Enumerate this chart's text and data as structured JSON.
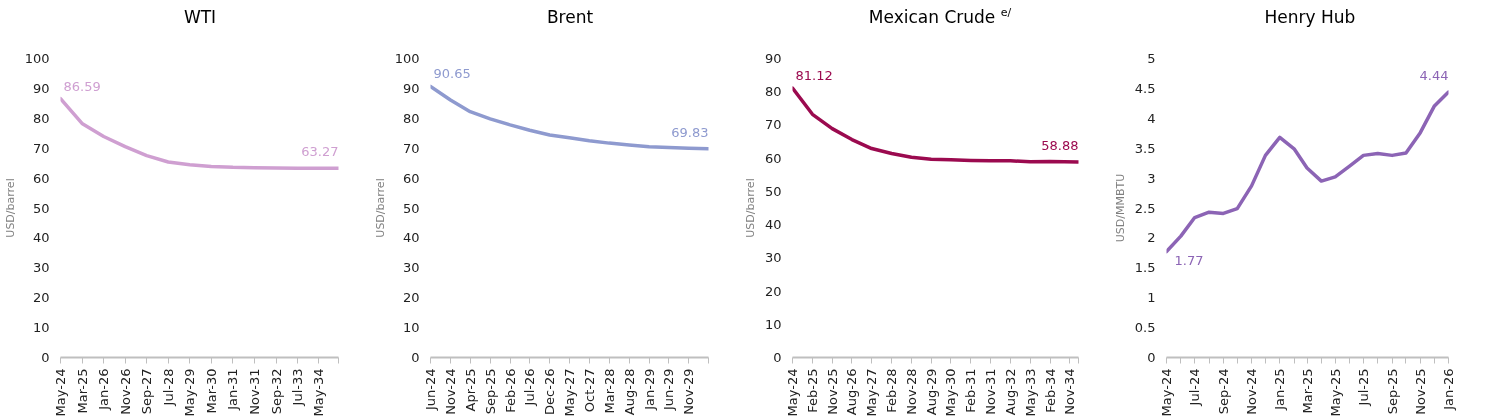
{
  "chart_data": [
    {
      "type": "line",
      "title": "WTI",
      "ylabel": "USD/barrel",
      "color": "#cf9fd1",
      "ylim": [
        0,
        100
      ],
      "yticks": [
        0,
        10,
        20,
        30,
        40,
        50,
        60,
        70,
        80,
        90,
        100
      ],
      "xlim": [
        "2024-05",
        "2035-02"
      ],
      "xticks": [
        {
          "value": "2024-05",
          "label": "May-24"
        },
        {
          "value": "2025-03",
          "label": "Mar-25"
        },
        {
          "value": "2026-01",
          "label": "Jan-26"
        },
        {
          "value": "2026-11",
          "label": "Nov-26"
        },
        {
          "value": "2027-09",
          "label": "Sep-27"
        },
        {
          "value": "2028-07",
          "label": "Jul-28"
        },
        {
          "value": "2029-05",
          "label": "May-29"
        },
        {
          "value": "2030-03",
          "label": "Mar-30"
        },
        {
          "value": "2031-01",
          "label": "Jan-31"
        },
        {
          "value": "2031-11",
          "label": "Nov-31"
        },
        {
          "value": "2032-09",
          "label": "Sep-32"
        },
        {
          "value": "2033-07",
          "label": "Jul-33"
        },
        {
          "value": "2034-05",
          "label": "May-34"
        },
        {
          "value": "2035-02",
          "label": null
        }
      ],
      "x": [
        "2024-05",
        "2025-03",
        "2026-01",
        "2026-11",
        "2027-09",
        "2028-07",
        "2029-05",
        "2030-03",
        "2031-01",
        "2031-11",
        "2032-09",
        "2033-07",
        "2034-05",
        "2035-02"
      ],
      "values": [
        86.59,
        78.3,
        73.9,
        70.5,
        67.5,
        65.4,
        64.5,
        63.9,
        63.6,
        63.5,
        63.4,
        63.3,
        63.3,
        63.27
      ],
      "value_labels": [
        "86.59",
        null,
        null,
        null,
        null,
        null,
        null,
        null,
        null,
        null,
        null,
        null,
        null,
        "63.27"
      ]
    },
    {
      "type": "line",
      "title": "Brent",
      "ylabel": "USD/barrel",
      "color": "#8e9acf",
      "ylim": [
        0,
        100
      ],
      "yticks": [
        0,
        10,
        20,
        30,
        40,
        50,
        60,
        70,
        80,
        90,
        100
      ],
      "xlim": [
        "2024-06",
        "2030-04"
      ],
      "xticks": [
        {
          "value": "2024-06",
          "label": "Jun-24"
        },
        {
          "value": "2024-11",
          "label": "Nov-24"
        },
        {
          "value": "2025-04",
          "label": "Apr-25"
        },
        {
          "value": "2025-09",
          "label": "Sep-25"
        },
        {
          "value": "2026-02",
          "label": "Feb-26"
        },
        {
          "value": "2026-07",
          "label": "Jul-26"
        },
        {
          "value": "2026-12",
          "label": "Dec-26"
        },
        {
          "value": "2027-05",
          "label": "May-27"
        },
        {
          "value": "2027-10",
          "label": "Oct-27"
        },
        {
          "value": "2028-03",
          "label": "Mar-28"
        },
        {
          "value": "2028-08",
          "label": "Aug-28"
        },
        {
          "value": "2029-01",
          "label": "Jan-29"
        },
        {
          "value": "2029-06",
          "label": "Jun-29"
        },
        {
          "value": "2029-11",
          "label": "Nov-29"
        },
        {
          "value": "2030-04",
          "label": null
        }
      ],
      "x": [
        "2024-06",
        "2024-11",
        "2025-04",
        "2025-09",
        "2026-02",
        "2026-07",
        "2026-12",
        "2027-05",
        "2027-10",
        "2028-03",
        "2028-08",
        "2029-01",
        "2029-06",
        "2029-11",
        "2030-04"
      ],
      "values": [
        90.65,
        86.1,
        82.2,
        79.8,
        77.8,
        76.0,
        74.4,
        73.5,
        72.5,
        71.7,
        71.1,
        70.5,
        70.2,
        70.0,
        69.83
      ],
      "value_labels": [
        "90.65",
        null,
        null,
        null,
        null,
        null,
        null,
        null,
        null,
        null,
        null,
        null,
        null,
        null,
        "69.83"
      ]
    },
    {
      "type": "line",
      "title": "Mexican Crude $^{e/}$",
      "ylabel": "USD/barrel",
      "color": "#9b0a4f",
      "ylim": [
        0,
        90
      ],
      "yticks": [
        0,
        10,
        20,
        30,
        40,
        50,
        60,
        70,
        80,
        90
      ],
      "xlim": [
        "2024-05",
        "2035-03"
      ],
      "xticks": [
        {
          "value": "2024-05",
          "label": "May-24"
        },
        {
          "value": "2025-02",
          "label": "Feb-25"
        },
        {
          "value": "2025-11",
          "label": "Nov-25"
        },
        {
          "value": "2026-08",
          "label": "Aug-26"
        },
        {
          "value": "2027-05",
          "label": "May-27"
        },
        {
          "value": "2028-02",
          "label": "Feb-28"
        },
        {
          "value": "2028-11",
          "label": "Nov-28"
        },
        {
          "value": "2029-08",
          "label": "Aug-29"
        },
        {
          "value": "2030-05",
          "label": "May-30"
        },
        {
          "value": "2031-02",
          "label": "Feb-31"
        },
        {
          "value": "2031-11",
          "label": "Nov-31"
        },
        {
          "value": "2032-08",
          "label": "Aug-32"
        },
        {
          "value": "2033-05",
          "label": "May-33"
        },
        {
          "value": "2034-02",
          "label": "Feb-34"
        },
        {
          "value": "2034-11",
          "label": "Nov-34"
        },
        {
          "value": "2035-03",
          "label": null
        }
      ],
      "x": [
        "2024-05",
        "2025-02",
        "2025-11",
        "2026-08",
        "2027-05",
        "2028-02",
        "2028-11",
        "2029-08",
        "2030-05",
        "2031-02",
        "2031-11",
        "2032-08",
        "2033-05",
        "2034-02",
        "2035-03"
      ],
      "values": [
        81.12,
        73.2,
        68.9,
        65.6,
        62.9,
        61.4,
        60.3,
        59.7,
        59.5,
        59.3,
        59.2,
        59.2,
        58.9,
        59.0,
        58.88
      ],
      "value_labels": [
        "81.12",
        null,
        null,
        null,
        null,
        null,
        null,
        null,
        null,
        null,
        null,
        null,
        null,
        null,
        "58.88"
      ]
    },
    {
      "type": "line",
      "title": "Henry Hub",
      "ylabel": "USD/MMBTU",
      "color": "#8c64b5",
      "ylim": [
        0,
        5
      ],
      "yticks": [
        0,
        0.5,
        1,
        1.5,
        2,
        2.5,
        3,
        3.5,
        4,
        4.5,
        5
      ],
      "xlim": [
        "2024-05",
        "2026-01"
      ],
      "xticks": [
        {
          "value": "2024-05",
          "label": "May-24"
        },
        {
          "value": "2024-06",
          "label": null
        },
        {
          "value": "2024-07",
          "label": "Jul-24"
        },
        {
          "value": "2024-08",
          "label": null
        },
        {
          "value": "2024-09",
          "label": "Sep-24"
        },
        {
          "value": "2024-10",
          "label": null
        },
        {
          "value": "2024-11",
          "label": "Nov-24"
        },
        {
          "value": "2024-12",
          "label": null
        },
        {
          "value": "2025-01",
          "label": "Jan-25"
        },
        {
          "value": "2025-02",
          "label": null
        },
        {
          "value": "2025-03",
          "label": "Mar-25"
        },
        {
          "value": "2025-04",
          "label": null
        },
        {
          "value": "2025-05",
          "label": "May-25"
        },
        {
          "value": "2025-06",
          "label": null
        },
        {
          "value": "2025-07",
          "label": "Jul-25"
        },
        {
          "value": "2025-08",
          "label": null
        },
        {
          "value": "2025-09",
          "label": "Sep-25"
        },
        {
          "value": "2025-10",
          "label": null
        },
        {
          "value": "2025-11",
          "label": "Nov-25"
        },
        {
          "value": "2025-12",
          "label": null
        },
        {
          "value": "2026-01",
          "label": "Jan-26"
        }
      ],
      "x": [
        "2024-05",
        "2024-06",
        "2024-07",
        "2024-08",
        "2024-09",
        "2024-10",
        "2024-11",
        "2024-12",
        "2025-01",
        "2025-02",
        "2025-03",
        "2025-04",
        "2025-05",
        "2025-06",
        "2025-07",
        "2025-08",
        "2025-09",
        "2025-10",
        "2025-11",
        "2025-12",
        "2026-01"
      ],
      "values": [
        1.77,
        2.03,
        2.34,
        2.43,
        2.41,
        2.49,
        2.87,
        3.38,
        3.68,
        3.49,
        3.17,
        2.95,
        3.02,
        3.2,
        3.38,
        3.41,
        3.38,
        3.42,
        3.76,
        4.2,
        4.44
      ],
      "value_labels": [
        "1.77",
        null,
        null,
        null,
        null,
        null,
        null,
        null,
        null,
        null,
        null,
        null,
        null,
        null,
        null,
        null,
        null,
        null,
        null,
        null,
        "4.44"
      ]
    }
  ]
}
